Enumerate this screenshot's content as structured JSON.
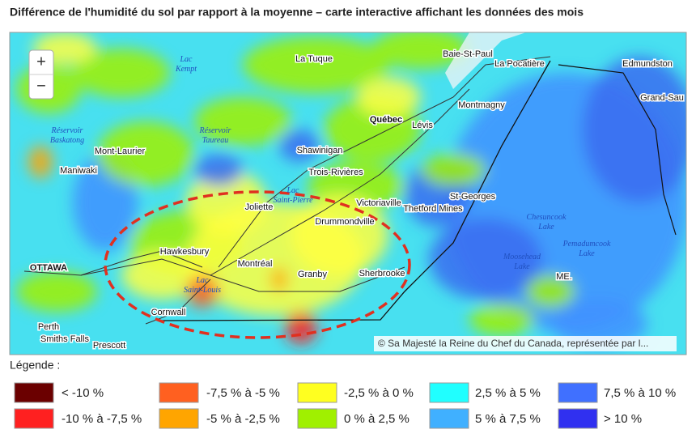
{
  "header": {
    "title": "Différence de l'humidité du sol par rapport à la moyenne – carte interactive affichant les données des mois"
  },
  "map": {
    "zoom_in": "+",
    "zoom_out": "−",
    "attribution": "© Sa Majesté la Reine du Chef du Canada, représentée par l...",
    "places": [
      "La Tuque",
      "Baie-St-Paul",
      "La Pocatière",
      "Edmundston",
      "Grand-Sau",
      "Montmagny",
      "Québec",
      "Lévis",
      "Mont-Laurier",
      "Shawinigan",
      "Maniwaki",
      "Trois-Rivières",
      "Joliette",
      "Victoriaville",
      "Thetford Mines",
      "St-Georges",
      "Drummondville",
      "Hawkesbury",
      "ME.",
      "Montréal",
      "Granby",
      "Sherbrooke",
      "OTTAWA",
      "Cornwall",
      "Perth",
      "Smiths Falls",
      "Prescott"
    ],
    "water": [
      "Lac\nKempt",
      "Réservoir\nBaskatong",
      "Réservoir\nTaureau",
      "Lac\nSaint-Pierre",
      "Chesuncook\nLake",
      "Pemadumcook\nLake",
      "Moosehead\nLake",
      "Lac\nSaint-Louis"
    ]
  },
  "legend": {
    "title": "Légende :",
    "items": [
      {
        "label": "< -10 %",
        "color": "#6b0000"
      },
      {
        "label": "-7,5 % à -5 %",
        "color": "#ff6020"
      },
      {
        "label": "-2,5 % à 0 %",
        "color": "#ffff20"
      },
      {
        "label": "2,5 % à 5 %",
        "color": "#20ffff"
      },
      {
        "label": "7,5 % à 10 %",
        "color": "#4070ff"
      },
      {
        "label": "-10 % à -7,5 %",
        "color": "#ff2020"
      },
      {
        "label": "-5 % à -2,5 %",
        "color": "#ffa500"
      },
      {
        "label": "0 % à 2,5 %",
        "color": "#a0f000"
      },
      {
        "label": "5 % à 7,5 %",
        "color": "#40b0ff"
      },
      {
        "label": "> 10 %",
        "color": "#3030f0"
      }
    ]
  }
}
